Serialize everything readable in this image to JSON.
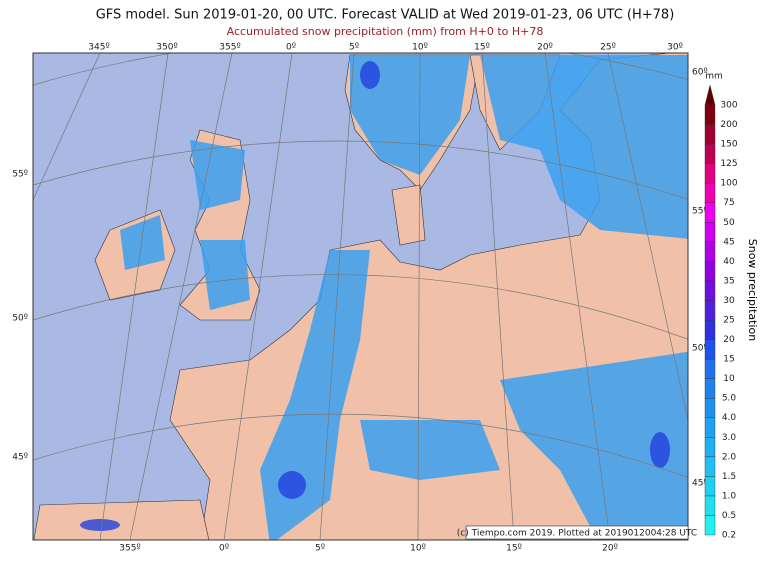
{
  "header": {
    "title": "GFS model. Sun 2019-01-20, 00 UTC. Forecast VALID at Wed 2019-01-23, 06 UTC (H+78)",
    "subtitle": "Accumulated snow precipitation (mm) from H+0 to H+78"
  },
  "map": {
    "top_longitudes": [
      "345º",
      "350º",
      "355º",
      "0º",
      "5º",
      "10º",
      "15º",
      "20º",
      "25º",
      "30º"
    ],
    "bottom_longitudes": [
      "355º",
      "0º",
      "5º",
      "10º",
      "15º",
      "20º"
    ],
    "left_latitudes": [
      "55º",
      "50º",
      "45º"
    ],
    "right_latitudes": [
      "60º",
      "55º",
      "50º",
      "45º"
    ],
    "credit": "(c) Tiempo.com 2019. Plotted at 2019012004:28 UTC"
  },
  "colorbar": {
    "unit": "mm",
    "label": "Snow precipitation",
    "levels": [
      "0.2",
      "0.5",
      "1.0",
      "1.5",
      "2.0",
      "3.0",
      "4.0",
      "5.0",
      "10",
      "15",
      "20",
      "25",
      "30",
      "35",
      "40",
      "45",
      "50",
      "75",
      "100",
      "125",
      "150",
      "200",
      "300"
    ],
    "colors": [
      "#20f0f0",
      "#20e0f0",
      "#20d0f0",
      "#20c0f0",
      "#20b0f0",
      "#20a0f0",
      "#2090f0",
      "#2080f0",
      "#2070f0",
      "#2050f0",
      "#3030e0",
      "#5020e0",
      "#7010e0",
      "#9000e0",
      "#b000e8",
      "#d000f0",
      "#f000f0",
      "#f000b0",
      "#e00080",
      "#c00050",
      "#a00030",
      "#800010"
    ],
    "top_color": "#600000"
  }
}
